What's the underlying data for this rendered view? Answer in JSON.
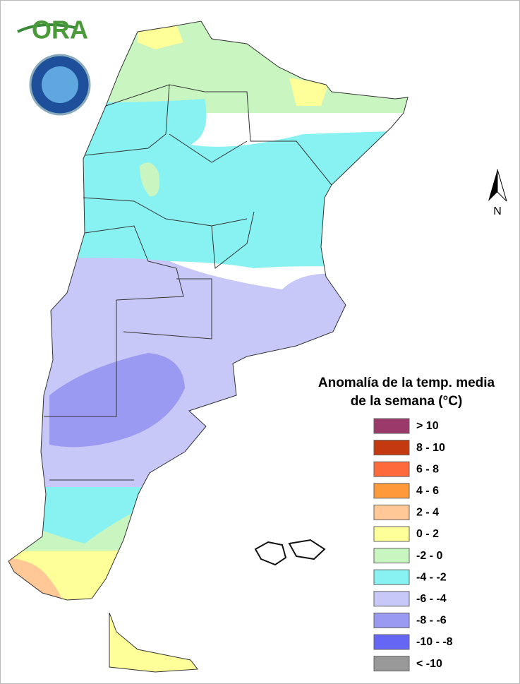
{
  "logo": "ORA",
  "north": "N",
  "legend": {
    "title": [
      "Anomalía de la temp. media",
      "de la semana (°C)"
    ],
    "items": [
      {
        "label": "> 10",
        "color": "#9b3a6a"
      },
      {
        "label": "8 - 10",
        "color": "#c4390f"
      },
      {
        "label": "6 - 8",
        "color": "#ff6a3d"
      },
      {
        "label": "4 - 6",
        "color": "#ff9a3a"
      },
      {
        "label": "2 - 4",
        "color": "#ffc896"
      },
      {
        "label": "0 - 2",
        "color": "#ffff99"
      },
      {
        "label": "-2 - 0",
        "color": "#c8f5c0"
      },
      {
        "label": "-4 - -2",
        "color": "#88f2f2"
      },
      {
        "label": "-6 - -4",
        "color": "#c8c8f8"
      },
      {
        "label": "-8 - -6",
        "color": "#9a9af2"
      },
      {
        "label": "-10 - -8",
        "color": "#6666f5"
      },
      {
        "label": "< -10",
        "color": "#999999"
      }
    ]
  }
}
